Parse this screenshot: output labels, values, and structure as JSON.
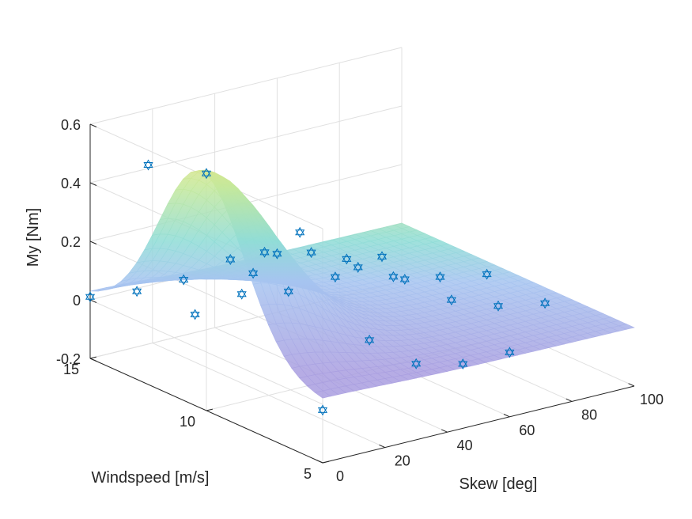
{
  "chart_data": {
    "type": "surface3d",
    "title": "",
    "zlabel": "My [Nm]",
    "ylabel": "Windspeed [m/s]",
    "xlabel": "Skew [deg]",
    "z_ticks": [
      "0.6",
      "0.4",
      "0.2",
      "0",
      "-0.2"
    ],
    "y_ticks": [
      "15",
      "10",
      "5"
    ],
    "x_ticks": [
      "0",
      "20",
      "40",
      "60",
      "80",
      "100"
    ],
    "xlim": [
      0,
      100
    ],
    "ylim": [
      5,
      15
    ],
    "zlim": [
      -0.2,
      0.6
    ],
    "grid": true,
    "surface_colormap": "parula (semi-transparent)",
    "marker": "hexagram",
    "marker_color": "#0072BD",
    "scatter_points": [
      {
        "skew": 0,
        "windspeed": 15,
        "my": 0.01
      },
      {
        "skew": 0,
        "windspeed": 12.5,
        "my": 0.55
      },
      {
        "skew": 0,
        "windspeed": 10,
        "my": 0.61
      },
      {
        "skew": 0,
        "windspeed": 7.5,
        "my": 0.43
      },
      {
        "skew": 0,
        "windspeed": 5,
        "my": -0.02
      },
      {
        "skew": 15,
        "windspeed": 15,
        "my": -0.01
      },
      {
        "skew": 15,
        "windspeed": 12.5,
        "my": 0.0
      },
      {
        "skew": 15,
        "windspeed": 10,
        "my": 0.23
      },
      {
        "skew": 15,
        "windspeed": 7.5,
        "my": 0.39
      },
      {
        "skew": 15,
        "windspeed": 5,
        "my": 0.18
      },
      {
        "skew": 30,
        "windspeed": 15,
        "my": -0.01
      },
      {
        "skew": 30,
        "windspeed": 12.5,
        "my": 0.03
      },
      {
        "skew": 30,
        "windspeed": 10,
        "my": 0.33
      },
      {
        "skew": 30,
        "windspeed": 7.5,
        "my": 0.3
      },
      {
        "skew": 30,
        "windspeed": 5,
        "my": 0.06
      },
      {
        "skew": 45,
        "windspeed": 15,
        "my": 0.02
      },
      {
        "skew": 45,
        "windspeed": 12.5,
        "my": 0.0
      },
      {
        "skew": 45,
        "windspeed": 10,
        "my": 0.2
      },
      {
        "skew": 45,
        "windspeed": 7.5,
        "my": 0.22
      },
      {
        "skew": 45,
        "windspeed": 5,
        "my": 0.02
      },
      {
        "skew": 60,
        "windspeed": 15,
        "my": 0.0
      },
      {
        "skew": 60,
        "windspeed": 12.5,
        "my": 0.01
      },
      {
        "skew": 60,
        "windspeed": 10,
        "my": 0.1
      },
      {
        "skew": 60,
        "windspeed": 7.5,
        "my": 0.11
      },
      {
        "skew": 60,
        "windspeed": 5,
        "my": 0.02
      },
      {
        "skew": 75,
        "windspeed": 12.5,
        "my": 0.04
      },
      {
        "skew": 75,
        "windspeed": 10,
        "my": 0.06
      },
      {
        "skew": 75,
        "windspeed": 7.5,
        "my": 0.05
      },
      {
        "skew": 90,
        "windspeed": 10,
        "my": 0.03
      },
      {
        "skew": 90,
        "windspeed": 7.5,
        "my": 0.02
      }
    ]
  }
}
